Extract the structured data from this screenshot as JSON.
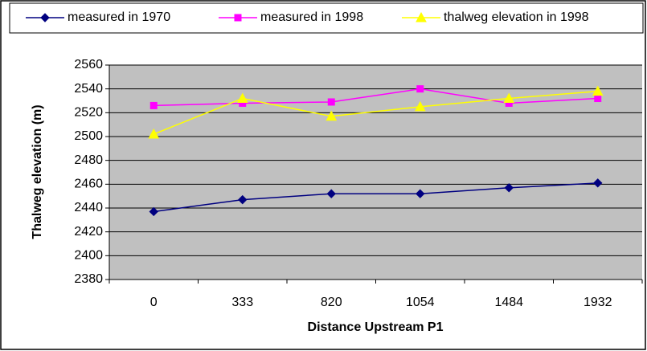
{
  "chart_data": {
    "type": "line",
    "x_label": "Distance Upstream P1",
    "y_label": "Thalweg elevation (m)",
    "categories": [
      "0",
      "333",
      "820",
      "1054",
      "1484",
      "1932"
    ],
    "series": [
      {
        "name": "measured in 1970",
        "color": "#000080",
        "marker": "diamond",
        "values": [
          2437,
          2447,
          2452,
          2452,
          2457,
          2461
        ]
      },
      {
        "name": "measured in 1998",
        "color": "#ff00ff",
        "marker": "square",
        "values": [
          2526,
          2528,
          2529,
          2540,
          2528,
          2532
        ]
      },
      {
        "name": "thalweg elevation in 1998",
        "color": "#ffff00",
        "marker": "triangle",
        "values": [
          2502,
          2532,
          2517,
          2525,
          2532,
          2538
        ]
      }
    ],
    "ylim": [
      2380,
      2560
    ],
    "yticks": [
      2380,
      2400,
      2420,
      2440,
      2460,
      2480,
      2500,
      2520,
      2540,
      2560
    ],
    "grid": true,
    "plot_background": "#c0c0c0",
    "legend": "top"
  }
}
